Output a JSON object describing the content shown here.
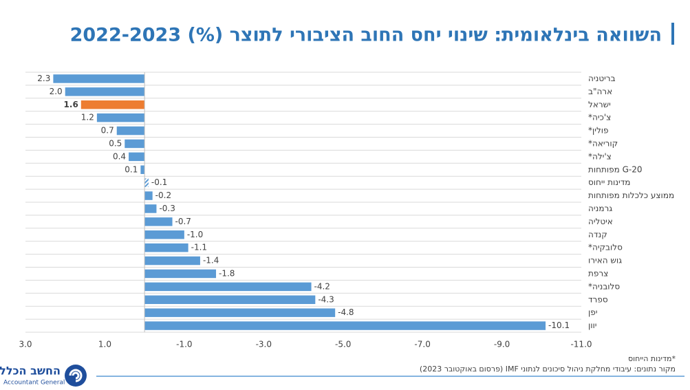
{
  "chart_data": {
    "type": "bar",
    "orientation": "horizontal",
    "title": "השוואה בינלאומית:  שינוי יחס החוב הציבורי לתוצר (%) 2022-2023",
    "categories": [
      "בריטניה",
      "ארה\"ב",
      "ישראל",
      "צ'כיה*",
      "פולין*",
      "קוריאה*",
      "צ'ילה*",
      "G-20 מפותחות",
      "מדינות ייחוס",
      "ממוצע כלכלות מפותחות",
      "גרמניה",
      "איטליה",
      "קנדה",
      "סלובקיה*",
      "גוש האירו",
      "צרפת",
      "סלובניה*",
      "ספרד",
      "יפן",
      "יוון"
    ],
    "values": [
      2.3,
      2.0,
      1.6,
      1.2,
      0.7,
      0.5,
      0.4,
      0.1,
      -0.1,
      -0.2,
      -0.3,
      -0.7,
      -1.0,
      -1.1,
      -1.4,
      -1.8,
      -4.2,
      -4.3,
      -4.8,
      -10.1
    ],
    "value_labels": [
      "2.3",
      "2.0",
      "1.6",
      "1.2",
      "0.7",
      "0.5",
      "0.4",
      "0.1",
      "-0.1",
      "-0.2",
      "-0.3",
      "-0.7",
      "-1.0",
      "-1.1",
      "-1.4",
      "-1.8",
      "-4.2",
      "-4.3",
      "-4.8",
      "-10.1"
    ],
    "color": "#5b9bd5",
    "highlight_color": "#ed7d31",
    "highlight_index": 2,
    "hatched_index": 8,
    "xlim": [
      3,
      -11
    ],
    "xticks": [
      {
        "value": 3,
        "label": "3.0"
      },
      {
        "value": 1,
        "label": "1.0"
      },
      {
        "value": -1,
        "label": "-1.0"
      },
      {
        "value": -3,
        "label": "-3.0"
      },
      {
        "value": -5,
        "label": "-5.0"
      },
      {
        "value": -7,
        "label": "-7.0"
      },
      {
        "value": -9,
        "label": "-9.0"
      },
      {
        "value": -11,
        "label": "-11.0"
      }
    ],
    "notes": [
      "*מדינות הייחוס",
      "מקור נתונים: עיבודי מחלקת ניהול סיכונים לנתוני IMF (פרסום באוקטובר 2023)"
    ]
  },
  "logo": {
    "title": "החשב הכללי",
    "subtitle": "Accountant General"
  }
}
